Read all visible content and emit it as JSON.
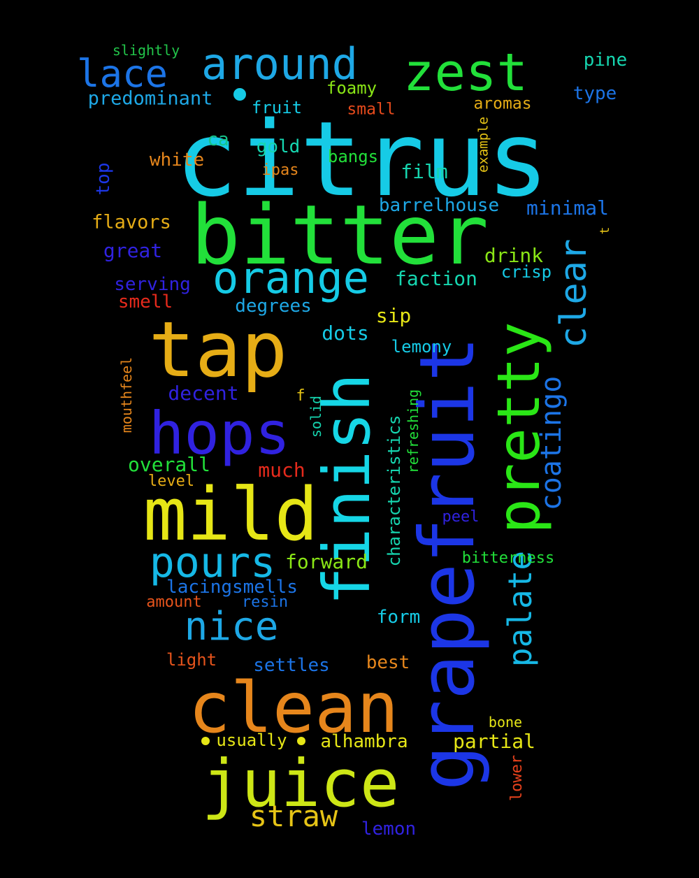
{
  "words": [
    {
      "text": "citrus",
      "color": "#16cbe6"
    },
    {
      "text": "bitter",
      "color": "#22e03a"
    },
    {
      "text": "grapefruit",
      "color": "#1c36e6"
    },
    {
      "text": "tap",
      "color": "#e6ad16"
    },
    {
      "text": "mild",
      "color": "#e6e616"
    },
    {
      "text": "clean",
      "color": "#e6861c"
    },
    {
      "text": "juice",
      "color": "#cde616"
    },
    {
      "text": "hops",
      "color": "#3022e0"
    },
    {
      "text": "finish",
      "color": "#16d6e6"
    },
    {
      "text": "pretty",
      "color": "#2ae616"
    },
    {
      "text": "zest",
      "color": "#22e03a"
    },
    {
      "text": "orange",
      "color": "#16cbe6"
    },
    {
      "text": "around",
      "color": "#1ea8e6"
    },
    {
      "text": "lace",
      "color": "#1c74e6"
    },
    {
      "text": "pours",
      "color": "#16b8e6"
    },
    {
      "text": "nice",
      "color": "#1ea8e6"
    },
    {
      "text": "clear",
      "color": "#1ea8e6"
    },
    {
      "text": "palate",
      "color": "#16b8e6"
    },
    {
      "text": "coatingo",
      "color": "#1c74e6"
    },
    {
      "text": "straw",
      "color": "#e6c416"
    },
    {
      "text": "slightly",
      "color": "#22c44a"
    },
    {
      "text": "pine",
      "color": "#16d6b0"
    },
    {
      "text": "type",
      "color": "#1c74e6"
    },
    {
      "text": "predominant",
      "color": "#1ea8e6"
    },
    {
      "text": "foamy",
      "color": "#8ae616"
    },
    {
      "text": "fruit",
      "color": "#16cbe6"
    },
    {
      "text": "small",
      "color": "#e64a1c"
    },
    {
      "text": "aromas",
      "color": "#e6ad16"
    },
    {
      "text": "ca",
      "color": "#16c48a"
    },
    {
      "text": "gold",
      "color": "#16d6b0"
    },
    {
      "text": "white",
      "color": "#e6861c"
    },
    {
      "text": "bangs",
      "color": "#22e03a"
    },
    {
      "text": "example",
      "color": "#e6c416"
    },
    {
      "text": "top",
      "color": "#1c36e6"
    },
    {
      "text": "ipas",
      "color": "#e6861c"
    },
    {
      "text": "film",
      "color": "#16d6b0"
    },
    {
      "text": "barrelhouse",
      "color": "#1ea8e6"
    },
    {
      "text": "minimal",
      "color": "#1c74e6"
    },
    {
      "text": "flavors",
      "color": "#e6ad16"
    },
    {
      "text": "t",
      "color": "#e6c416"
    },
    {
      "text": "great",
      "color": "#3022e0"
    },
    {
      "text": "drink",
      "color": "#8ae616"
    },
    {
      "text": "crisp",
      "color": "#16cbe6"
    },
    {
      "text": "serving",
      "color": "#3022e0"
    },
    {
      "text": "faction",
      "color": "#16d6b0"
    },
    {
      "text": "smell",
      "color": "#e62a1c"
    },
    {
      "text": "degrees",
      "color": "#1ea8e6"
    },
    {
      "text": "sip",
      "color": "#e6e616"
    },
    {
      "text": "dots",
      "color": "#16cbe6"
    },
    {
      "text": "lemony",
      "color": "#16cbe6"
    },
    {
      "text": "mouthfeel",
      "color": "#e6861c"
    },
    {
      "text": "decent",
      "color": "#3022e0"
    },
    {
      "text": "f",
      "color": "#e6c416"
    },
    {
      "text": "solid",
      "color": "#16d6b0"
    },
    {
      "text": "refreshing",
      "color": "#22e03a"
    },
    {
      "text": "characteristics",
      "color": "#16d6b0"
    },
    {
      "text": "overall",
      "color": "#22e03a"
    },
    {
      "text": "much",
      "color": "#e62a1c"
    },
    {
      "text": "level",
      "color": "#e6ad16"
    },
    {
      "text": "peel",
      "color": "#3022e0"
    },
    {
      "text": "forward",
      "color": "#8ae616"
    },
    {
      "text": "bitterness",
      "color": "#22e03a"
    },
    {
      "text": "lacingsmells",
      "color": "#1c74e6"
    },
    {
      "text": "amount",
      "color": "#e6541c"
    },
    {
      "text": "resin",
      "color": "#1c74e6"
    },
    {
      "text": "form",
      "color": "#16cbe6"
    },
    {
      "text": "light",
      "color": "#e6541c"
    },
    {
      "text": "settles",
      "color": "#1c74e6"
    },
    {
      "text": "best",
      "color": "#e6861c"
    },
    {
      "text": "bone",
      "color": "#e6e616"
    },
    {
      "text": "usually",
      "color": "#e6e616"
    },
    {
      "text": "alhambra",
      "color": "#e6e616"
    },
    {
      "text": "partial",
      "color": "#e6e616"
    },
    {
      "text": "lower",
      "color": "#e6411c"
    },
    {
      "text": "lemon",
      "color": "#3022e0"
    }
  ]
}
